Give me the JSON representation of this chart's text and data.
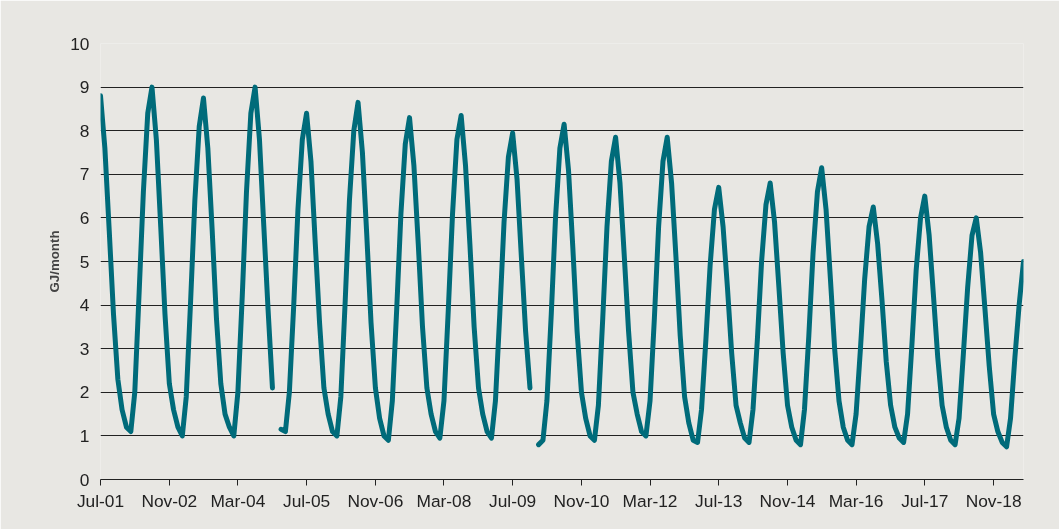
{
  "chart_data": {
    "type": "line",
    "ylabel": "GJ/month",
    "color": "#006b7a",
    "line_style": "solid",
    "grid": "y",
    "xlim": [
      "2001-07",
      "2019-06"
    ],
    "ylim": [
      0,
      10
    ],
    "yticks": [
      0,
      1,
      2,
      3,
      4,
      5,
      6,
      7,
      8,
      9,
      10
    ],
    "xticks": [
      {
        "value": "2001-07",
        "label": "Jul-01"
      },
      {
        "value": "2002-11",
        "label": "Nov-02"
      },
      {
        "value": "2004-03",
        "label": "Mar-04"
      },
      {
        "value": "2005-07",
        "label": "Jul-05"
      },
      {
        "value": "2006-11",
        "label": "Nov-06"
      },
      {
        "value": "2008-03",
        "label": "Mar-08"
      },
      {
        "value": "2009-07",
        "label": "Jul-09"
      },
      {
        "value": "2010-11",
        "label": "Nov-10"
      },
      {
        "value": "2012-03",
        "label": "Mar-12"
      },
      {
        "value": "2013-07",
        "label": "Jul-13"
      },
      {
        "value": "2014-11",
        "label": "Nov-14"
      },
      {
        "value": "2016-03",
        "label": "Mar-16"
      },
      {
        "value": "2017-07",
        "label": "Jul-17"
      },
      {
        "value": "2018-11",
        "label": "Nov-18"
      }
    ],
    "x": [
      "2001-07",
      "2001-08",
      "2001-09",
      "2001-10",
      "2001-11",
      "2001-12",
      "2002-01",
      "2002-02",
      "2002-03",
      "2002-04",
      "2002-05",
      "2002-06",
      "2002-07",
      "2002-08",
      "2002-09",
      "2002-10",
      "2002-11",
      "2002-12",
      "2003-01",
      "2003-02",
      "2003-03",
      "2003-04",
      "2003-05",
      "2003-06",
      "2003-07",
      "2003-08",
      "2003-09",
      "2003-10",
      "2003-11",
      "2003-12",
      "2004-01",
      "2004-02",
      "2004-03",
      "2004-04",
      "2004-05",
      "2004-06",
      "2004-07",
      "2004-08",
      "2004-09",
      "2004-10",
      "2004-11",
      "2004-12",
      "2005-01",
      "2005-02",
      "2005-03",
      "2005-04",
      "2005-05",
      "2005-06",
      "2005-07",
      "2005-08",
      "2005-09",
      "2005-10",
      "2005-11",
      "2005-12",
      "2006-01",
      "2006-02",
      "2006-03",
      "2006-04",
      "2006-05",
      "2006-06",
      "2006-07",
      "2006-08",
      "2006-09",
      "2006-10",
      "2006-11",
      "2006-12",
      "2007-01",
      "2007-02",
      "2007-03",
      "2007-04",
      "2007-05",
      "2007-06",
      "2007-07",
      "2007-08",
      "2007-09",
      "2007-10",
      "2007-11",
      "2007-12",
      "2008-01",
      "2008-02",
      "2008-03",
      "2008-04",
      "2008-05",
      "2008-06",
      "2008-07",
      "2008-08",
      "2008-09",
      "2008-10",
      "2008-11",
      "2008-12",
      "2009-01",
      "2009-02",
      "2009-03",
      "2009-04",
      "2009-05",
      "2009-06",
      "2009-07",
      "2009-08",
      "2009-09",
      "2009-10",
      "2009-11",
      "2009-12",
      "2010-01",
      "2010-02",
      "2010-03",
      "2010-04",
      "2010-05",
      "2010-06",
      "2010-07",
      "2010-08",
      "2010-09",
      "2010-10",
      "2010-11",
      "2010-12",
      "2011-01",
      "2011-02",
      "2011-03",
      "2011-04",
      "2011-05",
      "2011-06",
      "2011-07",
      "2011-08",
      "2011-09",
      "2011-10",
      "2011-11",
      "2011-12",
      "2012-01",
      "2012-02",
      "2012-03",
      "2012-04",
      "2012-05",
      "2012-06",
      "2012-07",
      "2012-08",
      "2012-09",
      "2012-10",
      "2012-11",
      "2012-12",
      "2013-01",
      "2013-02",
      "2013-03",
      "2013-04",
      "2013-05",
      "2013-06",
      "2013-07",
      "2013-08",
      "2013-09",
      "2013-10",
      "2013-11",
      "2013-12",
      "2014-01",
      "2014-02",
      "2014-03",
      "2014-04",
      "2014-05",
      "2014-06",
      "2014-07",
      "2014-08",
      "2014-09",
      "2014-10",
      "2014-11",
      "2014-12",
      "2015-01",
      "2015-02",
      "2015-03",
      "2015-04",
      "2015-05",
      "2015-06",
      "2015-07",
      "2015-08",
      "2015-09",
      "2015-10",
      "2015-11",
      "2015-12",
      "2016-01",
      "2016-02",
      "2016-03",
      "2016-04",
      "2016-05",
      "2016-06",
      "2016-07",
      "2016-08",
      "2016-09",
      "2016-10",
      "2016-11",
      "2016-12",
      "2017-01",
      "2017-02",
      "2017-03",
      "2017-04",
      "2017-05",
      "2017-06",
      "2017-07",
      "2017-08",
      "2017-09",
      "2017-10",
      "2017-11",
      "2017-12",
      "2018-01",
      "2018-02",
      "2018-03",
      "2018-04",
      "2018-05",
      "2018-06",
      "2018-07",
      "2018-08",
      "2018-09",
      "2018-10",
      "2018-11",
      "2018-12",
      "2019-01",
      "2019-02",
      "2019-03",
      "2019-04",
      "2019-05",
      "2019-06"
    ],
    "values": [
      8.8,
      7.6,
      5.7,
      3.8,
      2.3,
      1.6,
      1.2,
      1.1,
      2.0,
      4.3,
      6.6,
      8.4,
      9.0,
      7.8,
      5.8,
      3.8,
      2.2,
      1.6,
      1.2,
      1.0,
      1.9,
      4.1,
      6.4,
      8.1,
      8.75,
      7.6,
      5.7,
      3.7,
      2.2,
      1.5,
      1.2,
      1.0,
      2.0,
      4.2,
      6.6,
      8.4,
      9.0,
      7.8,
      5.8,
      3.9,
      2.1,
      null,
      1.15,
      1.1,
      2.0,
      4.0,
      6.2,
      7.8,
      8.4,
      7.3,
      5.4,
      3.6,
      2.1,
      1.5,
      1.1,
      1.0,
      1.9,
      4.1,
      6.4,
      8.0,
      8.65,
      7.5,
      5.6,
      3.6,
      2.1,
      1.4,
      1.0,
      0.9,
      1.8,
      3.9,
      6.1,
      7.7,
      8.3,
      7.2,
      5.4,
      3.5,
      2.1,
      1.5,
      1.1,
      0.95,
      1.8,
      3.9,
      6.1,
      7.8,
      8.35,
      7.2,
      5.4,
      3.5,
      2.1,
      1.5,
      1.1,
      0.95,
      1.8,
      3.8,
      5.9,
      7.4,
      7.95,
      6.9,
      5.1,
      3.4,
      2.1,
      null,
      0.8,
      0.9,
      1.8,
      3.8,
      6.0,
      7.6,
      8.15,
      7.1,
      5.3,
      3.4,
      2.0,
      1.4,
      1.0,
      0.9,
      1.7,
      3.7,
      5.8,
      7.3,
      7.85,
      6.8,
      5.1,
      3.4,
      2.0,
      1.5,
      1.1,
      1.0,
      1.8,
      3.7,
      5.8,
      7.3,
      7.85,
      6.8,
      5.1,
      3.3,
      1.9,
      1.3,
      0.9,
      0.85,
      1.6,
      3.2,
      4.9,
      6.2,
      6.7,
      5.8,
      4.4,
      2.9,
      1.7,
      1.3,
      0.95,
      0.85,
      1.6,
      3.2,
      5.0,
      6.3,
      6.8,
      5.9,
      4.4,
      2.9,
      1.7,
      1.2,
      0.9,
      0.8,
      1.6,
      3.3,
      5.2,
      6.6,
      7.15,
      6.2,
      4.6,
      3.0,
      1.8,
      1.2,
      0.9,
      0.8,
      1.5,
      3.0,
      4.6,
      5.8,
      6.25,
      5.4,
      4.1,
      2.7,
      1.7,
      1.2,
      0.95,
      0.85,
      1.5,
      3.1,
      4.8,
      6.0,
      6.5,
      5.6,
      4.2,
      2.8,
      1.7,
      1.2,
      0.9,
      0.8,
      1.4,
      2.9,
      4.4,
      5.6,
      6.0,
      5.2,
      3.9,
      2.6,
      1.5,
      1.1,
      0.85,
      0.75,
      1.4,
      2.8,
      4.0,
      5.0
    ]
  }
}
